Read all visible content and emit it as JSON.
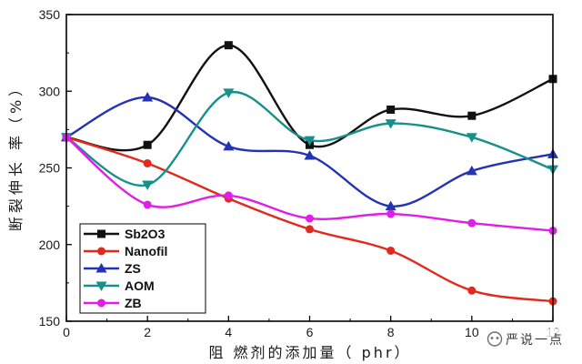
{
  "chart_data": {
    "type": "line",
    "curve": "smooth",
    "x": [
      0,
      2,
      4,
      6,
      8,
      10,
      12
    ],
    "series": [
      {
        "name": "Sb2O3",
        "marker": "square",
        "color": "#111111",
        "values": [
          270,
          265,
          330,
          265,
          288,
          284,
          308
        ]
      },
      {
        "name": "Nanofil",
        "marker": "circle",
        "color": "#e3281c",
        "values": [
          270,
          253,
          230,
          210,
          196,
          170,
          163
        ]
      },
      {
        "name": "ZS",
        "marker": "triangle-up",
        "color": "#2233b3",
        "values": [
          270,
          296,
          264,
          258,
          225,
          248,
          259
        ]
      },
      {
        "name": "AOM",
        "marker": "triangle-down",
        "color": "#16908a",
        "values": [
          270,
          239,
          299,
          268,
          279,
          270,
          249
        ]
      },
      {
        "name": "ZB",
        "marker": "circle",
        "color": "#e01fe6",
        "values": [
          270,
          226,
          232,
          217,
          220,
          214,
          209
        ]
      }
    ],
    "xlabel": "阻 燃剂的添加量（ phr）",
    "ylabel": "断裂伸长 率（%）",
    "xlim": [
      0,
      12
    ],
    "ylim": [
      150,
      350
    ],
    "xticks": [
      0,
      2,
      4,
      6,
      8,
      10,
      12
    ],
    "yticks": [
      150,
      200,
      250,
      300,
      350
    ],
    "grid": false,
    "legend": "lower-left"
  },
  "watermark": {
    "text": "严说一点",
    "icon": "wechat-icon"
  }
}
